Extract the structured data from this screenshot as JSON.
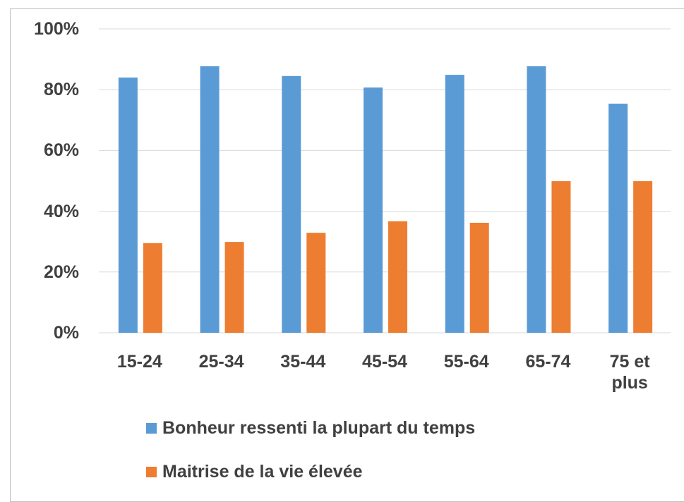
{
  "chart_data": {
    "type": "bar",
    "categories": [
      "15-24",
      "25-34",
      "35-44",
      "45-54",
      "55-64",
      "65-74",
      "75 et plus"
    ],
    "series": [
      {
        "name": "Bonheur ressenti la plupart du temps",
        "color": "#5b9bd5",
        "values": [
          84.0,
          87.7,
          84.5,
          80.7,
          84.9,
          87.7,
          75.4
        ]
      },
      {
        "name": "Maitrise de la vie élevée",
        "color": "#ed7d31",
        "values": [
          29.5,
          29.9,
          32.9,
          36.7,
          36.2,
          49.9,
          49.9
        ]
      }
    ],
    "ylim": [
      0,
      100
    ],
    "yticks": [
      {
        "value": 0,
        "label": "0%"
      },
      {
        "value": 20,
        "label": "20%"
      },
      {
        "value": 40,
        "label": "40%"
      },
      {
        "value": 60,
        "label": "60%"
      },
      {
        "value": 80,
        "label": "80%"
      },
      {
        "value": 100,
        "label": "100%"
      }
    ],
    "grid": true,
    "legend": "bottom"
  }
}
